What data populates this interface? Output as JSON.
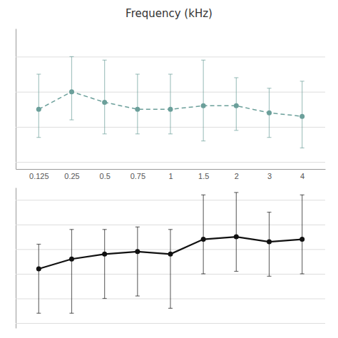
{
  "chart_data": [
    {
      "type": "line",
      "title": "Frequency (kHz)",
      "categories": [
        "0.125",
        "0.25",
        "0.5",
        "0.75",
        "1",
        "1.5",
        "2",
        "3",
        "4"
      ],
      "values": [
        15,
        20,
        17,
        15,
        15,
        16,
        16,
        14,
        13
      ],
      "yerr_low": [
        8,
        8,
        9,
        7,
        7,
        10,
        7,
        7,
        9
      ],
      "yerr_high": [
        10,
        10,
        12,
        10,
        10,
        13,
        8,
        7,
        10
      ],
      "color": "#6b9f9a",
      "line_style": "dashed",
      "marker": "circle",
      "ylim": [
        -2,
        38
      ],
      "yticks": [
        0,
        10,
        20,
        30
      ],
      "grid": true,
      "tick_labels": "x"
    },
    {
      "type": "line",
      "categories": [
        "0.125",
        "0.25",
        "0.5",
        "0.75",
        "1",
        "1.5",
        "2",
        "3",
        "4"
      ],
      "values": [
        42,
        46,
        48,
        49,
        48,
        54,
        55,
        53,
        54
      ],
      "yerr_low": [
        18,
        22,
        18,
        18,
        22,
        14,
        14,
        14,
        14
      ],
      "yerr_high": [
        10,
        12,
        10,
        10,
        10,
        18,
        18,
        12,
        18
      ],
      "color": "#111111",
      "line_style": "solid",
      "marker": "circle",
      "ylim": [
        18,
        75
      ],
      "yticks": [
        20,
        30,
        40,
        50,
        60,
        70
      ],
      "grid": true,
      "tick_labels": false
    }
  ]
}
